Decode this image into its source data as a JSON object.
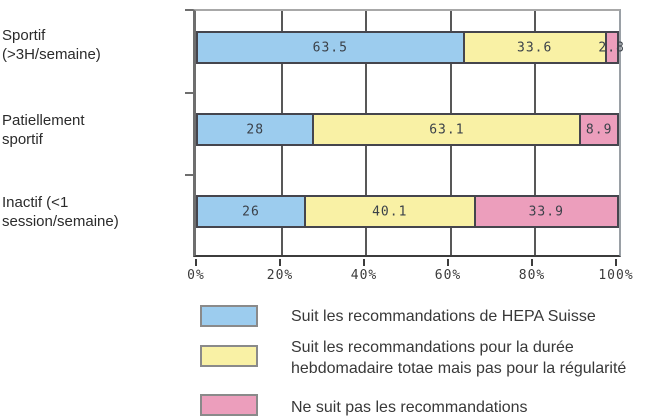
{
  "chart_data": {
    "type": "bar",
    "orientation": "horizontal-stacked",
    "title": "",
    "xlabel": "",
    "ylabel": "",
    "xlim": [
      0,
      100
    ],
    "x_ticks": [
      "0%",
      "20%",
      "40%",
      "60%",
      "80%",
      "100%"
    ],
    "grid": "vertical gridlines every 20%",
    "legend_position": "bottom",
    "categories": [
      "Sportif (>3H/semaine)",
      "Patiellement sportif",
      "Inactif (<1 session/semaine)"
    ],
    "series": [
      {
        "name": "Suit les recommandations de HEPA Suisse",
        "color": "#9cccee",
        "values": [
          63.5,
          28,
          26
        ]
      },
      {
        "name": "Suit les recommandations pour la durée hebdomadaire totae mais pas pour la régularité",
        "color": "#f9f1a5",
        "values": [
          33.6,
          63.1,
          40.1
        ]
      },
      {
        "name": "Ne suit pas les recommandations",
        "color": "#ec9ebc",
        "values": [
          2.8,
          8.9,
          33.9
        ]
      }
    ]
  },
  "category_labels": [
    {
      "line1": "Sportif",
      "line2": "(>3H/semaine)"
    },
    {
      "line1": "Patiellement",
      "line2": "sportif"
    },
    {
      "line1": "Inactif (<1",
      "line2": "session/semaine)"
    }
  ],
  "axis": {
    "ticks": [
      "0%",
      "20%",
      "40%",
      "60%",
      "80%",
      "100%"
    ]
  },
  "legend": [
    {
      "color": "#9cccee",
      "lines": [
        "Suit les recommandations de HEPA Suisse",
        ""
      ]
    },
    {
      "color": "#f9f1a5",
      "lines": [
        "Suit les recommandations pour la durée",
        "hebdomadaire totae mais pas pour la régularité"
      ]
    },
    {
      "color": "#ec9ebc",
      "lines": [
        "Ne suit pas les recommandations",
        ""
      ]
    }
  ],
  "colors": {
    "bar_border": "#45454d",
    "gridline": "#585858",
    "axis": "#3c3c3c",
    "blue": "#9cccee",
    "yellow": "#f9f1a5",
    "pink": "#ec9ebc"
  }
}
